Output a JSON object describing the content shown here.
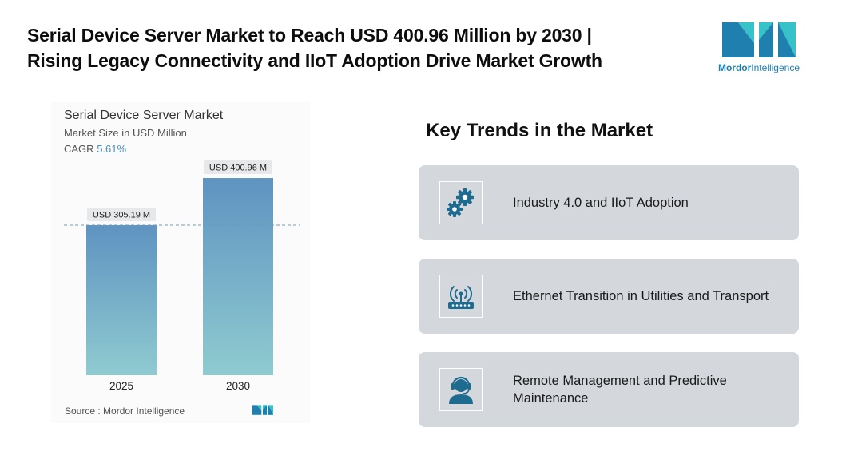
{
  "headline": {
    "line1": "Serial Device Server Market to Reach USD 400.96 Million by 2030 |",
    "line2": "Rising Legacy Connectivity and IIoT Adoption Drive Market Growth"
  },
  "logo": {
    "word1": "Mordor",
    "word2": "Intelligence",
    "colors": {
      "dark": "#1f7fae",
      "light": "#36c2c8"
    }
  },
  "chart_data": {
    "type": "bar",
    "title": "Serial Device Server Market",
    "subtitle": "Market Size in USD Million",
    "cagr_label": "CAGR",
    "cagr_value": "5.61%",
    "categories": [
      "2025",
      "2030"
    ],
    "values": [
      305.19,
      400.96
    ],
    "data_labels": [
      "USD 305.19 M",
      "USD 400.96 M"
    ],
    "ylim": [
      0,
      440
    ],
    "reference_line": 305.19,
    "grid": false,
    "colors": {
      "bar_top": "#5f93c1",
      "bar_bottom": "#8fcbd0",
      "reference": "#6b9cc0"
    },
    "source": "Source :  Mordor Intelligence"
  },
  "trends": {
    "title": "Key Trends in the Market",
    "items": [
      {
        "label": "Industry 4.0 and IIoT Adoption",
        "icon": "gears-icon"
      },
      {
        "label": "Ethernet Transition in Utilities and Transport",
        "icon": "router-icon"
      },
      {
        "label": "Remote Management and Predictive Maintenance",
        "icon": "support-agent-icon"
      }
    ],
    "colors": {
      "card": "#d4d7dc",
      "icon": "#1d6b8f"
    }
  }
}
